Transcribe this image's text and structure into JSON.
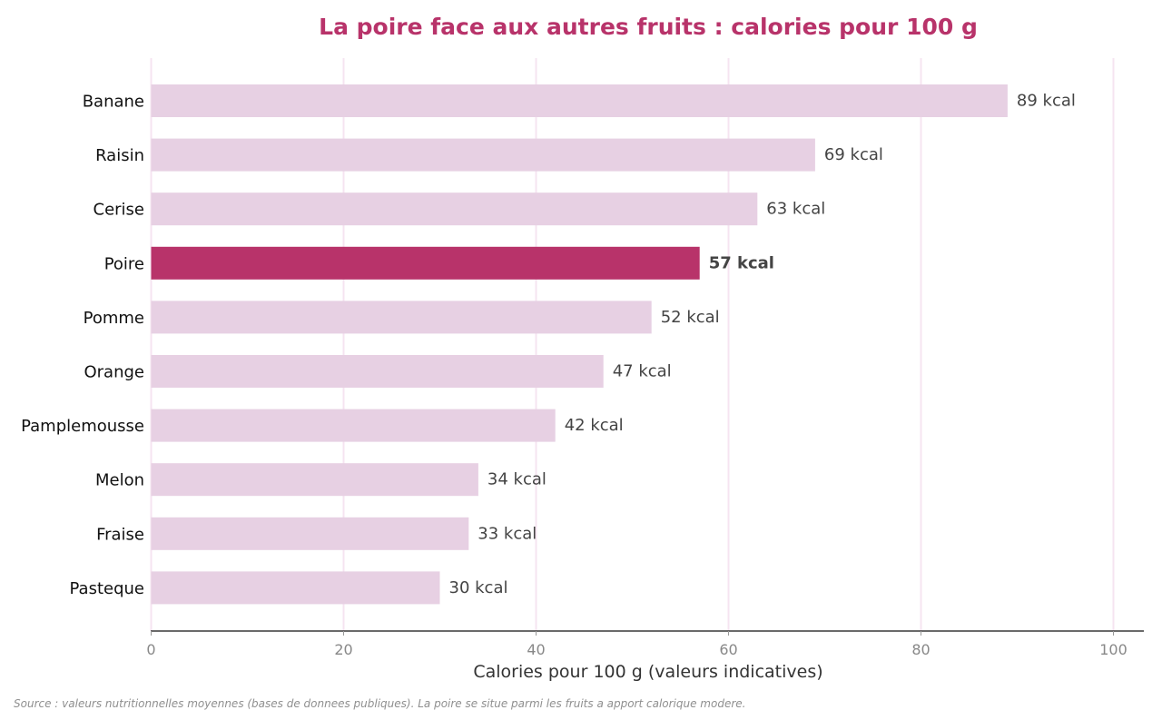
{
  "chart_data": {
    "type": "bar",
    "orientation": "horizontal",
    "title": "La poire face aux autres fruits : calories pour 100 g",
    "xlabel": "Calories pour 100 g (valeurs indicatives)",
    "ylabel": "",
    "xlim": [
      0,
      100
    ],
    "xticks": [
      0,
      20,
      40,
      60,
      80,
      100
    ],
    "grid": "vertical",
    "categories": [
      "Banane",
      "Raisin",
      "Cerise",
      "Poire",
      "Pomme",
      "Orange",
      "Pamplemousse",
      "Melon",
      "Fraise",
      "Pasteque"
    ],
    "values": [
      89,
      69,
      63,
      57,
      52,
      47,
      42,
      34,
      33,
      30
    ],
    "value_labels": [
      "89 kcal",
      "69 kcal",
      "63 kcal",
      "57 kcal",
      "52 kcal",
      "47 kcal",
      "42 kcal",
      "34 kcal",
      "33 kcal",
      "30 kcal"
    ],
    "highlight": "Poire",
    "colors": {
      "bar": "#e7d0e3",
      "highlight": "#b8336a",
      "title": "#b8336a",
      "grid": "#f6e4f1",
      "axis": "#111111"
    }
  },
  "source_note": "Source : valeurs nutritionnelles moyennes (bases de donnees publiques). La poire se situe parmi les fruits a apport calorique modere."
}
